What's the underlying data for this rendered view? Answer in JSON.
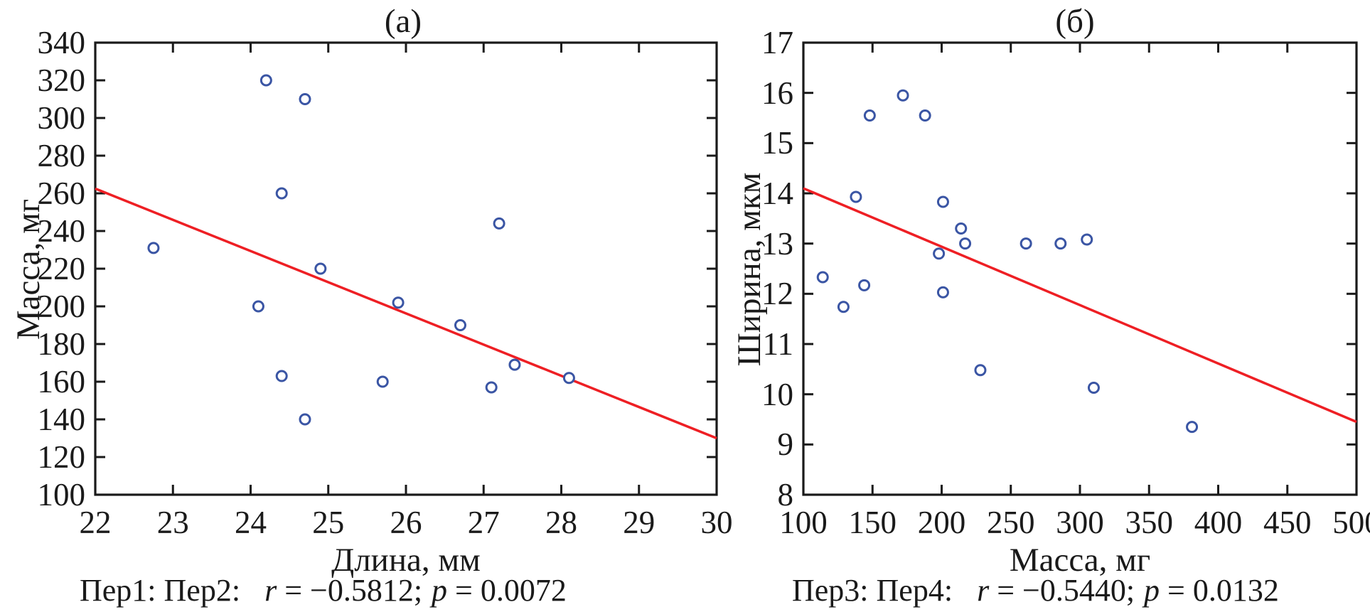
{
  "figure": {
    "background": "#ffffff",
    "ink_color": "#1a1a1a",
    "point_color": "#3a55a4",
    "line_color": "#ee1f24"
  },
  "chart_data": [
    {
      "type": "scatter",
      "panel_label": "(а)",
      "xlabel": "Длина, мм",
      "ylabel": "Масса, мг",
      "xlim": [
        22,
        30
      ],
      "ylim": [
        100,
        340
      ],
      "xticks": [
        22,
        23,
        24,
        25,
        26,
        27,
        28,
        29,
        30
      ],
      "yticks": [
        100,
        120,
        140,
        160,
        180,
        200,
        220,
        240,
        260,
        280,
        300,
        320,
        340
      ],
      "grid": false,
      "legend": "none",
      "marker": "open-circle",
      "points": [
        [
          22.75,
          231
        ],
        [
          24.2,
          320
        ],
        [
          24.7,
          310
        ],
        [
          24.4,
          260
        ],
        [
          27.2,
          244
        ],
        [
          24.1,
          200
        ],
        [
          24.9,
          220
        ],
        [
          25.9,
          202
        ],
        [
          26.7,
          190
        ],
        [
          24.4,
          163
        ],
        [
          25.7,
          160
        ],
        [
          27.4,
          169
        ],
        [
          27.1,
          157
        ],
        [
          28.1,
          162
        ],
        [
          24.7,
          140
        ]
      ],
      "regression_line": {
        "x1": 22,
        "y1": 262.5,
        "x2": 30,
        "y2": 130
      },
      "caption": {
        "prefix": "Пер1: Пер2:",
        "r_var": "r",
        "r_eq": "= −0.5812;",
        "p_var": "p",
        "p_eq": "= 0.0072"
      }
    },
    {
      "type": "scatter",
      "panel_label": "(б)",
      "xlabel": "Масса, мг",
      "ylabel": "Ширина, мкм",
      "xlim": [
        100,
        500
      ],
      "ylim": [
        8,
        17
      ],
      "xticks": [
        100,
        150,
        200,
        250,
        300,
        350,
        400,
        450,
        500
      ],
      "yticks": [
        8,
        9,
        10,
        11,
        12,
        13,
        14,
        15,
        16,
        17
      ],
      "grid": false,
      "legend": "none",
      "marker": "open-circle",
      "points": [
        [
          172,
          15.95
        ],
        [
          148,
          15.55
        ],
        [
          188,
          15.55
        ],
        [
          138,
          13.93
        ],
        [
          201,
          13.83
        ],
        [
          214,
          13.3
        ],
        [
          217,
          13.0
        ],
        [
          198,
          12.8
        ],
        [
          261,
          13.0
        ],
        [
          286,
          13.0
        ],
        [
          305,
          13.08
        ],
        [
          114,
          12.33
        ],
        [
          144,
          12.17
        ],
        [
          201,
          12.03
        ],
        [
          129,
          11.74
        ],
        [
          228,
          10.48
        ],
        [
          310,
          10.13
        ],
        [
          381,
          9.35
        ]
      ],
      "regression_line": {
        "x1": 100,
        "y1": 14.1,
        "x2": 500,
        "y2": 9.45
      },
      "caption": {
        "prefix": "Пер3: Пер4:",
        "r_var": "r",
        "r_eq": "= −0.5440;",
        "p_var": "p",
        "p_eq": "= 0.0132"
      }
    }
  ]
}
